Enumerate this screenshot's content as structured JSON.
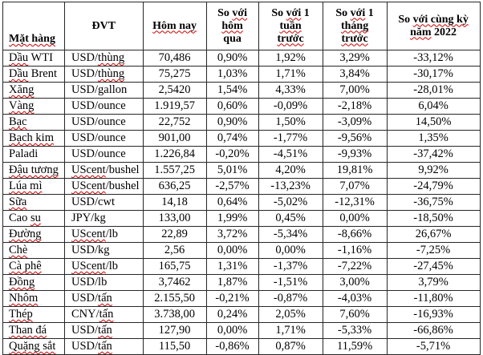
{
  "app": {
    "background": "#ffffff",
    "text_color": "#000000",
    "border_color": "#272727",
    "misspell_underline_color": "#cc0000"
  },
  "table": {
    "columns": [
      {
        "key": "name",
        "header_lines": [
          [
            [
              "Mặt hàng",
              true
            ]
          ]
        ]
      },
      {
        "key": "unit",
        "header_lines": [
          [
            [
              "ĐVT",
              false
            ]
          ]
        ]
      },
      {
        "key": "today",
        "header_lines": [
          [
            [
              "Hôm nay",
              true
            ]
          ]
        ]
      },
      {
        "key": "vs_yesterday",
        "header_lines": [
          [
            [
              "So ",
              false
            ],
            [
              "với",
              true
            ]
          ],
          [
            [
              "hôm",
              true
            ]
          ],
          [
            [
              "qua",
              false
            ]
          ]
        ]
      },
      {
        "key": "vs_week",
        "header_lines": [
          [
            [
              "So ",
              false
            ],
            [
              "với",
              true
            ],
            [
              " 1",
              false
            ]
          ],
          [
            [
              "tuần",
              true
            ]
          ],
          [
            [
              "trước",
              true
            ]
          ]
        ]
      },
      {
        "key": "vs_month",
        "header_lines": [
          [
            [
              "So ",
              false
            ],
            [
              "với",
              true
            ],
            [
              " 1",
              false
            ]
          ],
          [
            [
              "tháng",
              true
            ]
          ],
          [
            [
              "trước",
              true
            ]
          ]
        ]
      },
      {
        "key": "vs_2022",
        "header_lines": [
          [
            [
              "So ",
              false
            ],
            [
              "với cùng kỳ",
              true
            ]
          ],
          [
            [
              "năm",
              true
            ],
            [
              " 2022",
              false
            ]
          ]
        ]
      }
    ],
    "rows": [
      {
        "name": [
          [
            "Dầu",
            true
          ],
          [
            " WTI",
            false
          ]
        ],
        "unit": [
          [
            "USD/",
            false
          ],
          [
            "thùng",
            true
          ]
        ],
        "today": "70,486",
        "vs_yesterday": "0,90%",
        "vs_week": "1,92%",
        "vs_month": "3,29%",
        "vs_2022": "-33,12%"
      },
      {
        "name": [
          [
            "Dầu",
            true
          ],
          [
            " Brent",
            false
          ]
        ],
        "unit": [
          [
            "USD/",
            false
          ],
          [
            "thùng",
            true
          ]
        ],
        "today": "75,275",
        "vs_yesterday": "1,03%",
        "vs_week": "1,71%",
        "vs_month": "3,84%",
        "vs_2022": "-30,17%"
      },
      {
        "name": [
          [
            "Xăng",
            true
          ]
        ],
        "unit": [
          [
            "USD/gallon",
            false
          ]
        ],
        "today": "2,5420",
        "vs_yesterday": "1,54%",
        "vs_week": "4,33%",
        "vs_month": "7,00%",
        "vs_2022": "-28,01%"
      },
      {
        "name": [
          [
            "Vàng",
            true
          ]
        ],
        "unit": [
          [
            "USD/ounce",
            false
          ]
        ],
        "today": "1.919,57",
        "vs_yesterday": "0,60%",
        "vs_week": "-0,09%",
        "vs_month": "-2,18%",
        "vs_2022": "6,04%"
      },
      {
        "name": [
          [
            "Bạc",
            true
          ]
        ],
        "unit": [
          [
            "USD/ounce",
            false
          ]
        ],
        "today": "22,752",
        "vs_yesterday": "0,90%",
        "vs_week": "1,50%",
        "vs_month": "-3,09%",
        "vs_2022": "14,50%"
      },
      {
        "name": [
          [
            "Bạch kim",
            true
          ]
        ],
        "unit": [
          [
            "USD/ounce",
            false
          ]
        ],
        "today": "901,00",
        "vs_yesterday": "0,74%",
        "vs_week": "-1,77%",
        "vs_month": "-9,56%",
        "vs_2022": "1,35%"
      },
      {
        "name": [
          [
            "Paladi",
            false
          ]
        ],
        "unit": [
          [
            "USD/ounce",
            false
          ]
        ],
        "today": "1.226,84",
        "vs_yesterday": "-0,20%",
        "vs_week": "-4,51%",
        "vs_month": "-9,93%",
        "vs_2022": "-37,42%"
      },
      {
        "name": [
          [
            "Đậu tương",
            true
          ]
        ],
        "unit": [
          [
            "UScent",
            true
          ],
          [
            "/bushel",
            false
          ]
        ],
        "today": "1.557,25",
        "vs_yesterday": "5,01%",
        "vs_week": "4,20%",
        "vs_month": "19,81%",
        "vs_2022": "9,92%"
      },
      {
        "name": [
          [
            "Lúa mì",
            true
          ]
        ],
        "unit": [
          [
            "UScent",
            true
          ],
          [
            "/bushel",
            false
          ]
        ],
        "today": "636,25",
        "vs_yesterday": "-2,57%",
        "vs_week": "-13,23%",
        "vs_month": "7,07%",
        "vs_2022": "-24,79%"
      },
      {
        "name": [
          [
            "Sữa",
            true
          ]
        ],
        "unit": [
          [
            "USD/cwt",
            false
          ]
        ],
        "today": "14,18",
        "vs_yesterday": "0,64%",
        "vs_week": "-5,02%",
        "vs_month": "-12,31%",
        "vs_2022": "-36,75%"
      },
      {
        "name": [
          [
            "Cao ",
            false
          ],
          [
            "su",
            true
          ]
        ],
        "unit": [
          [
            "JPY/kg",
            false
          ]
        ],
        "today": "133,00",
        "vs_yesterday": "1,99%",
        "vs_week": "0,45%",
        "vs_month": "0,00%",
        "vs_2022": "-18,50%"
      },
      {
        "name": [
          [
            "Đường",
            true
          ]
        ],
        "unit": [
          [
            "UScent",
            true
          ],
          [
            "/lb",
            false
          ]
        ],
        "today": "22,89",
        "vs_yesterday": "3,72%",
        "vs_week": "-5,34%",
        "vs_month": "-8,66%",
        "vs_2022": "26,67%"
      },
      {
        "name": [
          [
            "Chè",
            true
          ]
        ],
        "unit": [
          [
            "USD/kg",
            false
          ]
        ],
        "today": "2,56",
        "vs_yesterday": "0,00%",
        "vs_week": "0,00%",
        "vs_month": "-1,16%",
        "vs_2022": "-7,25%"
      },
      {
        "name": [
          [
            "Cà phê",
            true
          ]
        ],
        "unit": [
          [
            "UScent",
            true
          ],
          [
            "/lb",
            false
          ]
        ],
        "today": "165,75",
        "vs_yesterday": "1,31%",
        "vs_week": "-1,37%",
        "vs_month": "-7,22%",
        "vs_2022": "-27,45%"
      },
      {
        "name": [
          [
            "Đồng",
            true
          ]
        ],
        "unit": [
          [
            "USD/lb",
            false
          ]
        ],
        "today": "3,7462",
        "vs_yesterday": "1,87%",
        "vs_week": "-1,51%",
        "vs_month": "3,00%",
        "vs_2022": "3,79%"
      },
      {
        "name": [
          [
            "Nhôm",
            true
          ]
        ],
        "unit": [
          [
            "USD/",
            false
          ],
          [
            "tấn",
            true
          ]
        ],
        "today": "2.155,50",
        "vs_yesterday": "-0,21%",
        "vs_week": "-0,87%",
        "vs_month": "-4,03%",
        "vs_2022": "-11,80%"
      },
      {
        "name": [
          [
            "Thép",
            true
          ]
        ],
        "unit": [
          [
            "CNY/",
            false
          ],
          [
            "tấn",
            true
          ]
        ],
        "today": "3.738,00",
        "vs_yesterday": "0,24%",
        "vs_week": "2,05%",
        "vs_month": "7,60%",
        "vs_2022": "-16,93%"
      },
      {
        "name": [
          [
            "Than đá",
            true
          ]
        ],
        "unit": [
          [
            "USD/",
            false
          ],
          [
            "tấn",
            true
          ]
        ],
        "today": "127,90",
        "vs_yesterday": "0,00%",
        "vs_week": "1,71%",
        "vs_month": "-5,33%",
        "vs_2022": "-66,86%"
      },
      {
        "name": [
          [
            "Quặng sắt",
            true
          ]
        ],
        "unit": [
          [
            "USD/",
            false
          ],
          [
            "tấn",
            true
          ]
        ],
        "today": "115,50",
        "vs_yesterday": "-0,86%",
        "vs_week": "0,87%",
        "vs_month": "11,59%",
        "vs_2022": "-5,71%"
      }
    ]
  }
}
